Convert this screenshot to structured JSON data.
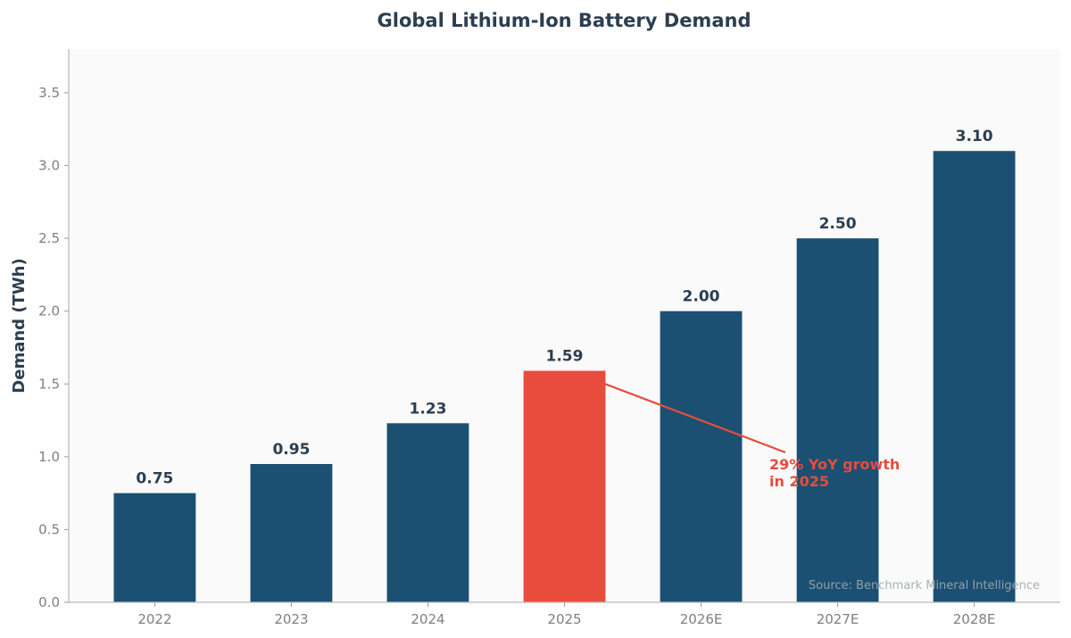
{
  "chart_data": {
    "type": "bar",
    "title": "Global Lithium-Ion Battery Demand",
    "xlabel": "",
    "ylabel": "Demand (TWh)",
    "categories": [
      "2022",
      "2023",
      "2024",
      "2025",
      "2026E",
      "2027E",
      "2028E"
    ],
    "values": [
      0.75,
      0.95,
      1.23,
      1.59,
      2.0,
      2.5,
      3.1
    ],
    "data_labels": [
      "0.75",
      "0.95",
      "1.23",
      "1.59",
      "2.00",
      "2.50",
      "3.10"
    ],
    "highlight_index": 3,
    "ylim": [
      0,
      3.8
    ],
    "yticks": [
      "0.0",
      "0.5",
      "1.0",
      "1.5",
      "2.0",
      "2.5",
      "3.0",
      "3.5"
    ],
    "grid": false,
    "colors": {
      "bar": "#1b5073",
      "highlight": "#e74c3c",
      "text": "#2c3e50",
      "background": "#fafafa"
    },
    "annotation": {
      "lines": [
        "29% YoY growth",
        "in 2025"
      ],
      "target_index": 3
    },
    "source": "Source: Benchmark Mineral Intelligence"
  }
}
